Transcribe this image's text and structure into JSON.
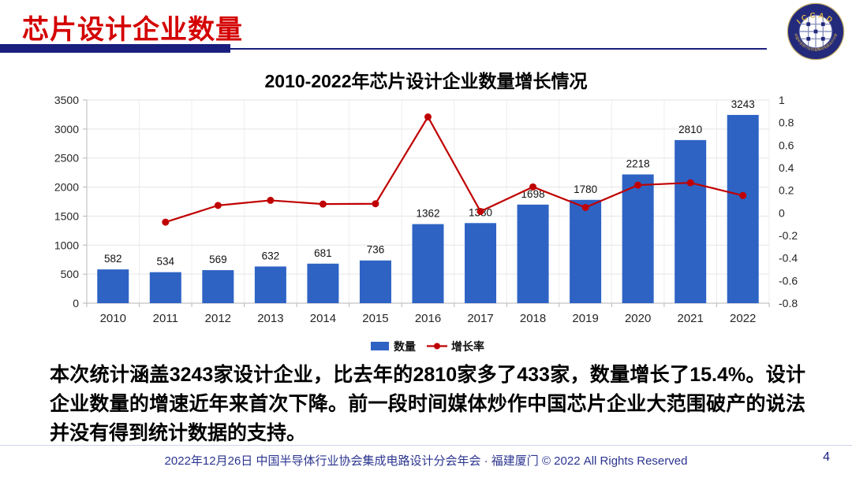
{
  "header": {
    "title": "芯片设计企业数量",
    "logo": {
      "name": "ICCAD",
      "ring_text_top": "ICCAD",
      "ring_text_bottom": "中国半导体行业协会集成电路设计分会",
      "ring_color": "#232a7c",
      "text_color": "#d8b44a"
    }
  },
  "chart_data": {
    "type": "bar",
    "title": "2010-2022年芯片设计企业数量增长情况",
    "categories": [
      "2010",
      "2011",
      "2012",
      "2013",
      "2014",
      "2015",
      "2016",
      "2017",
      "2018",
      "2019",
      "2020",
      "2021",
      "2022"
    ],
    "series": [
      {
        "name": "数量",
        "type": "bar",
        "color": "#2e63c4",
        "values": [
          582,
          534,
          569,
          632,
          681,
          736,
          1362,
          1380,
          1698,
          1780,
          2218,
          2810,
          3243
        ]
      },
      {
        "name": "增长率",
        "type": "line",
        "color": "#c00000",
        "values": [
          null,
          -0.082,
          0.066,
          0.111,
          0.078,
          0.081,
          0.85,
          0.013,
          0.23,
          0.048,
          0.246,
          0.267,
          0.154
        ]
      }
    ],
    "data_labels": [
      "582",
      "534",
      "569",
      "632",
      "681",
      "736",
      "1362",
      "1380",
      "1698",
      "1780",
      "2218",
      "2810",
      "3243"
    ],
    "left_axis": {
      "min": 0,
      "max": 3500,
      "step": 500,
      "ticks": [
        "0",
        "500",
        "1000",
        "1500",
        "2000",
        "2500",
        "3000",
        "3500"
      ]
    },
    "right_axis": {
      "min": -0.8,
      "max": 1,
      "step": 0.2,
      "ticks": [
        "1",
        "0.8",
        "0.6",
        "0.4",
        "0.2",
        "0",
        "-0.2",
        "-0.4",
        "-0.6",
        "-0.8"
      ]
    },
    "legend": {
      "position": "bottom",
      "entries": [
        "数量",
        "增长率"
      ]
    },
    "grid": true
  },
  "body": {
    "text": "本次统计涵盖3243家设计企业，比去年的2810家多了433家，数量增长了15.4%。设计企业数量的增速近年来首次下降。前一段时间媒体炒作中国芯片企业大范围破产的说法并没有得到统计数据的支持。"
  },
  "footer": {
    "text": "2022年12月26日 中国半导体行业协会集成电路设计分会年会 · 福建厦门 © 2022 All Rights Reserved",
    "page_number": "4"
  }
}
